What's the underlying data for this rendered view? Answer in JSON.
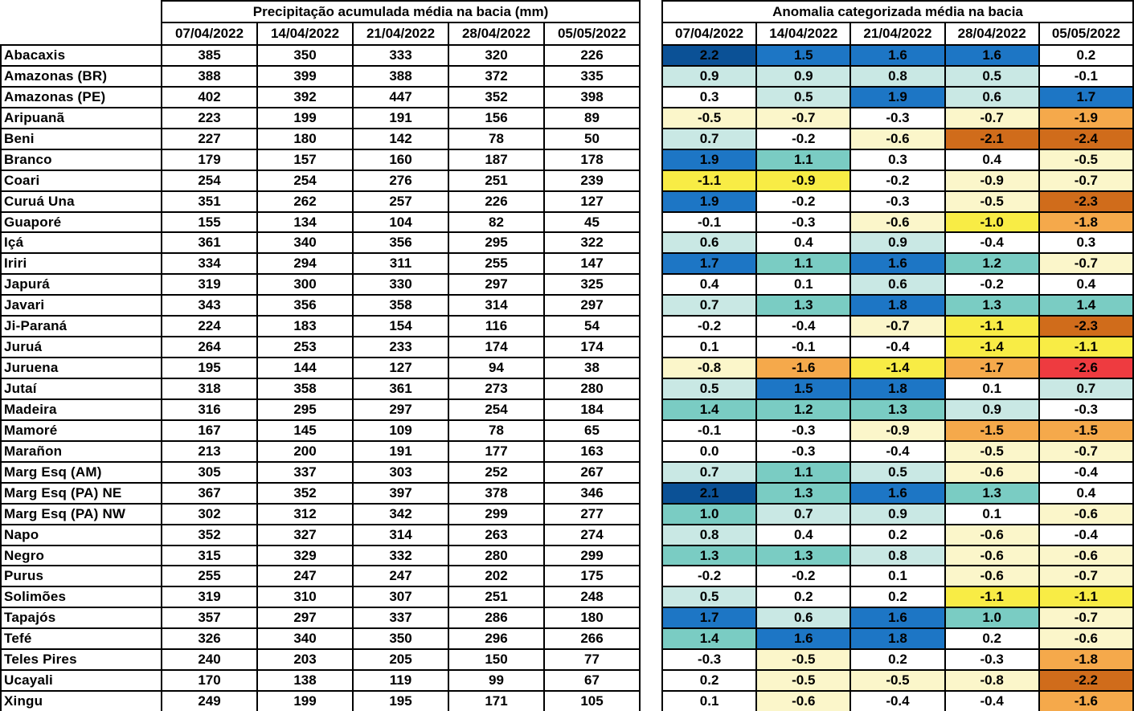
{
  "palette": {
    "navy": "#0b5196",
    "blue": "#1d76c5",
    "teal": "#7accc3",
    "cyan_light": "#c9e8e4",
    "white": "#ffffff",
    "yellow_light": "#fbf6ca",
    "yellow": "#f8ec45",
    "orange": "#f5a94b",
    "orange_dark": "#d06c1b",
    "red": "#ee3b40"
  },
  "chart_data": [
    {
      "type": "table",
      "title": "Precipitação acumulada média na bacia (mm)",
      "columns": [
        "07/04/2022",
        "14/04/2022",
        "21/04/2022",
        "28/04/2022",
        "05/05/2022"
      ],
      "rows": [
        {
          "basin": "Abacaxis",
          "values": [
            385,
            350,
            333,
            320,
            226
          ]
        },
        {
          "basin": "Amazonas (BR)",
          "values": [
            388,
            399,
            388,
            372,
            335
          ]
        },
        {
          "basin": "Amazonas (PE)",
          "values": [
            402,
            392,
            447,
            352,
            398
          ]
        },
        {
          "basin": "Aripuanã",
          "values": [
            223,
            199,
            191,
            156,
            89
          ]
        },
        {
          "basin": "Beni",
          "values": [
            227,
            180,
            142,
            78,
            50
          ]
        },
        {
          "basin": "Branco",
          "values": [
            179,
            157,
            160,
            187,
            178
          ]
        },
        {
          "basin": "Coari",
          "values": [
            254,
            254,
            276,
            251,
            239
          ]
        },
        {
          "basin": "Curuá Una",
          "values": [
            351,
            262,
            257,
            226,
            127
          ]
        },
        {
          "basin": "Guaporé",
          "values": [
            155,
            134,
            104,
            82,
            45
          ]
        },
        {
          "basin": "Içá",
          "values": [
            361,
            340,
            356,
            295,
            322
          ]
        },
        {
          "basin": "Iriri",
          "values": [
            334,
            294,
            311,
            255,
            147
          ]
        },
        {
          "basin": "Japurá",
          "values": [
            319,
            300,
            330,
            297,
            325
          ]
        },
        {
          "basin": "Javari",
          "values": [
            343,
            356,
            358,
            314,
            297
          ]
        },
        {
          "basin": "Ji-Paraná",
          "values": [
            224,
            183,
            154,
            116,
            54
          ]
        },
        {
          "basin": "Juruá",
          "values": [
            264,
            253,
            233,
            174,
            174
          ]
        },
        {
          "basin": "Juruena",
          "values": [
            195,
            144,
            127,
            94,
            38
          ]
        },
        {
          "basin": "Jutaí",
          "values": [
            318,
            358,
            361,
            273,
            280
          ]
        },
        {
          "basin": "Madeira",
          "values": [
            316,
            295,
            297,
            254,
            184
          ]
        },
        {
          "basin": "Mamoré",
          "values": [
            167,
            145,
            109,
            78,
            65
          ]
        },
        {
          "basin": "Marañon",
          "values": [
            213,
            200,
            191,
            177,
            163
          ]
        },
        {
          "basin": "Marg Esq (AM)",
          "values": [
            305,
            337,
            303,
            252,
            267
          ]
        },
        {
          "basin": "Marg Esq (PA) NE",
          "values": [
            367,
            352,
            397,
            378,
            346
          ]
        },
        {
          "basin": "Marg Esq (PA) NW",
          "values": [
            302,
            312,
            342,
            299,
            277
          ]
        },
        {
          "basin": "Napo",
          "values": [
            352,
            327,
            314,
            263,
            274
          ]
        },
        {
          "basin": "Negro",
          "values": [
            315,
            329,
            332,
            280,
            299
          ]
        },
        {
          "basin": "Purus",
          "values": [
            255,
            247,
            247,
            202,
            175
          ]
        },
        {
          "basin": "Solimões",
          "values": [
            319,
            310,
            307,
            251,
            248
          ]
        },
        {
          "basin": "Tapajós",
          "values": [
            357,
            297,
            337,
            286,
            180
          ]
        },
        {
          "basin": "Tefé",
          "values": [
            326,
            340,
            350,
            296,
            266
          ]
        },
        {
          "basin": "Teles Pires",
          "values": [
            240,
            203,
            205,
            150,
            77
          ]
        },
        {
          "basin": "Ucayali",
          "values": [
            170,
            138,
            119,
            99,
            67
          ]
        },
        {
          "basin": "Xingu",
          "values": [
            249,
            199,
            195,
            171,
            105
          ]
        }
      ]
    },
    {
      "type": "heatmap",
      "title": "Anomalia categorizada média na bacia",
      "columns": [
        "07/04/2022",
        "14/04/2022",
        "21/04/2022",
        "28/04/2022",
        "05/05/2022"
      ],
      "rows": [
        {
          "values": [
            2.2,
            1.5,
            1.6,
            1.6,
            0.2
          ],
          "categories": [
            "navy",
            "blue",
            "blue",
            "blue",
            "white"
          ]
        },
        {
          "values": [
            0.9,
            0.9,
            0.8,
            0.5,
            -0.1
          ],
          "categories": [
            "cyan_light",
            "cyan_light",
            "cyan_light",
            "cyan_light",
            "white"
          ]
        },
        {
          "values": [
            0.3,
            0.5,
            1.9,
            0.6,
            1.7
          ],
          "categories": [
            "white",
            "cyan_light",
            "blue",
            "cyan_light",
            "blue"
          ]
        },
        {
          "values": [
            -0.5,
            -0.7,
            -0.3,
            -0.7,
            -1.9
          ],
          "categories": [
            "yellow_light",
            "yellow_light",
            "white",
            "yellow_light",
            "orange"
          ]
        },
        {
          "values": [
            0.7,
            -0.2,
            -0.6,
            -2.1,
            -2.4
          ],
          "categories": [
            "cyan_light",
            "white",
            "yellow_light",
            "orange_dark",
            "orange_dark"
          ]
        },
        {
          "values": [
            1.9,
            1.1,
            0.3,
            0.4,
            -0.5
          ],
          "categories": [
            "blue",
            "teal",
            "white",
            "white",
            "yellow_light"
          ]
        },
        {
          "values": [
            -1.1,
            -0.9,
            -0.2,
            -0.9,
            -0.7
          ],
          "categories": [
            "yellow",
            "yellow",
            "white",
            "yellow_light",
            "yellow_light"
          ]
        },
        {
          "values": [
            1.9,
            -0.2,
            -0.3,
            -0.5,
            -2.3
          ],
          "categories": [
            "blue",
            "white",
            "white",
            "yellow_light",
            "orange_dark"
          ]
        },
        {
          "values": [
            -0.1,
            -0.3,
            -0.6,
            -1.0,
            -1.8
          ],
          "categories": [
            "white",
            "white",
            "yellow_light",
            "yellow",
            "orange"
          ]
        },
        {
          "values": [
            0.6,
            0.4,
            0.9,
            -0.4,
            0.3
          ],
          "categories": [
            "cyan_light",
            "white",
            "cyan_light",
            "white",
            "white"
          ]
        },
        {
          "values": [
            1.7,
            1.1,
            1.6,
            1.2,
            -0.7
          ],
          "categories": [
            "blue",
            "teal",
            "blue",
            "teal",
            "yellow_light"
          ]
        },
        {
          "values": [
            0.4,
            0.1,
            0.6,
            -0.2,
            0.4
          ],
          "categories": [
            "white",
            "white",
            "cyan_light",
            "white",
            "white"
          ]
        },
        {
          "values": [
            0.7,
            1.3,
            1.8,
            1.3,
            1.4
          ],
          "categories": [
            "cyan_light",
            "teal",
            "blue",
            "teal",
            "teal"
          ]
        },
        {
          "values": [
            -0.2,
            -0.4,
            -0.7,
            -1.1,
            -2.3
          ],
          "categories": [
            "white",
            "white",
            "yellow_light",
            "yellow",
            "orange_dark"
          ]
        },
        {
          "values": [
            0.1,
            -0.1,
            -0.4,
            -1.4,
            -1.1
          ],
          "categories": [
            "white",
            "white",
            "white",
            "yellow",
            "yellow"
          ]
        },
        {
          "values": [
            -0.8,
            -1.6,
            -1.4,
            -1.7,
            -2.6
          ],
          "categories": [
            "yellow_light",
            "orange",
            "yellow",
            "orange",
            "red"
          ]
        },
        {
          "values": [
            0.5,
            1.5,
            1.8,
            0.1,
            0.7
          ],
          "categories": [
            "cyan_light",
            "blue",
            "blue",
            "white",
            "cyan_light"
          ]
        },
        {
          "values": [
            1.4,
            1.2,
            1.3,
            0.9,
            -0.3
          ],
          "categories": [
            "teal",
            "teal",
            "teal",
            "cyan_light",
            "white"
          ]
        },
        {
          "values": [
            -0.1,
            -0.3,
            -0.9,
            -1.5,
            -1.5
          ],
          "categories": [
            "white",
            "white",
            "yellow_light",
            "orange",
            "orange"
          ]
        },
        {
          "values": [
            0.0,
            -0.3,
            -0.4,
            -0.5,
            -0.7
          ],
          "categories": [
            "white",
            "white",
            "white",
            "yellow_light",
            "yellow_light"
          ]
        },
        {
          "values": [
            0.7,
            1.1,
            0.5,
            -0.6,
            -0.4
          ],
          "categories": [
            "cyan_light",
            "teal",
            "cyan_light",
            "yellow_light",
            "white"
          ]
        },
        {
          "values": [
            2.1,
            1.3,
            1.6,
            1.3,
            0.4
          ],
          "categories": [
            "navy",
            "teal",
            "blue",
            "teal",
            "white"
          ]
        },
        {
          "values": [
            1.0,
            0.7,
            0.9,
            0.1,
            -0.6
          ],
          "categories": [
            "teal",
            "cyan_light",
            "cyan_light",
            "white",
            "yellow_light"
          ]
        },
        {
          "values": [
            0.8,
            0.4,
            0.2,
            -0.6,
            -0.4
          ],
          "categories": [
            "cyan_light",
            "white",
            "white",
            "yellow_light",
            "white"
          ]
        },
        {
          "values": [
            1.3,
            1.3,
            0.8,
            -0.6,
            -0.6
          ],
          "categories": [
            "teal",
            "teal",
            "cyan_light",
            "yellow_light",
            "yellow_light"
          ]
        },
        {
          "values": [
            -0.2,
            -0.2,
            0.1,
            -0.6,
            -0.7
          ],
          "categories": [
            "white",
            "white",
            "white",
            "yellow_light",
            "yellow_light"
          ]
        },
        {
          "values": [
            0.5,
            0.2,
            0.2,
            -1.1,
            -1.1
          ],
          "categories": [
            "cyan_light",
            "white",
            "white",
            "yellow",
            "yellow"
          ]
        },
        {
          "values": [
            1.7,
            0.6,
            1.6,
            1.0,
            -0.7
          ],
          "categories": [
            "blue",
            "cyan_light",
            "blue",
            "teal",
            "yellow_light"
          ]
        },
        {
          "values": [
            1.4,
            1.6,
            1.8,
            0.2,
            -0.6
          ],
          "categories": [
            "teal",
            "blue",
            "blue",
            "white",
            "yellow_light"
          ]
        },
        {
          "values": [
            -0.3,
            -0.5,
            0.2,
            -0.3,
            -1.8
          ],
          "categories": [
            "white",
            "yellow_light",
            "white",
            "white",
            "orange"
          ]
        },
        {
          "values": [
            0.2,
            -0.5,
            -0.5,
            -0.8,
            -2.2
          ],
          "categories": [
            "white",
            "yellow_light",
            "yellow_light",
            "yellow_light",
            "orange_dark"
          ]
        },
        {
          "values": [
            0.1,
            -0.6,
            -0.4,
            -0.4,
            -1.6
          ],
          "categories": [
            "white",
            "yellow_light",
            "white",
            "white",
            "orange"
          ]
        }
      ]
    }
  ]
}
